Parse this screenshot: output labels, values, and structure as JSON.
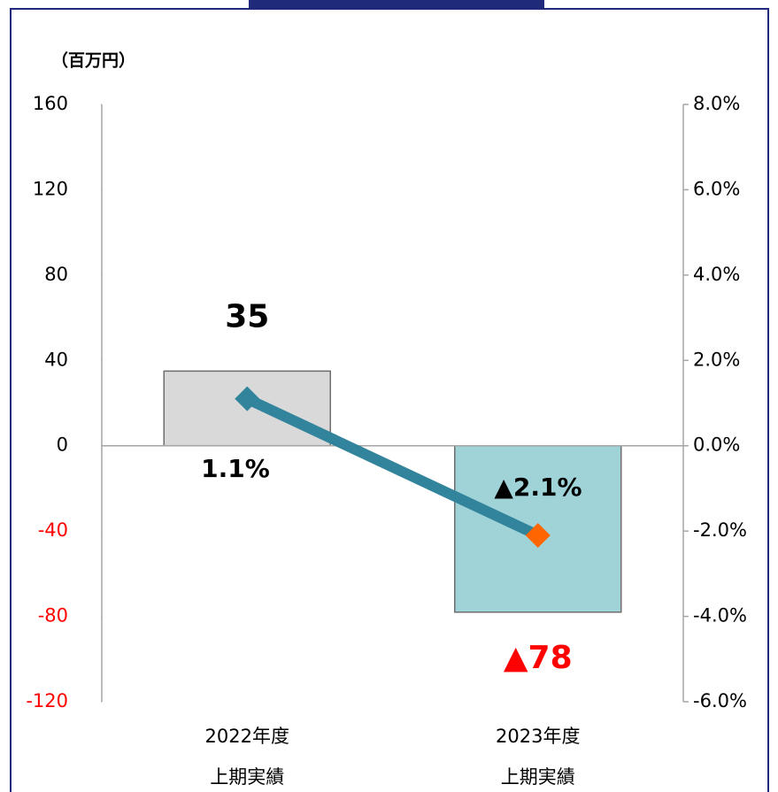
{
  "chart_data": {
    "type": "bar_line",
    "unit_label": "（百万円）",
    "categories": [
      [
        "2022年度",
        "上期実績"
      ],
      [
        "2023年度",
        "上期実績"
      ]
    ],
    "ylim": [
      -120,
      160
    ],
    "yticks": [
      -120,
      -80,
      -40,
      0,
      40,
      80,
      120,
      160
    ],
    "negative_tick_color": "#ff0000",
    "y2lim": [
      -6,
      8
    ],
    "y2ticks": [
      {
        "value": -6,
        "label": "-6.0%"
      },
      {
        "value": -4,
        "label": "-4.0%"
      },
      {
        "value": -2,
        "label": "-2.0%"
      },
      {
        "value": 0,
        "label": "0.0%"
      },
      {
        "value": 2,
        "label": "2.0%"
      },
      {
        "value": 4,
        "label": "4.0%"
      },
      {
        "value": 6,
        "label": "6.0%"
      },
      {
        "value": 8,
        "label": "8.0%"
      }
    ],
    "series": [
      {
        "type": "bar",
        "values": [
          35,
          -78
        ],
        "value_labels": [
          "35",
          "▲78"
        ],
        "colors": [
          "#d9d9d9",
          "#a0d3d8"
        ],
        "label_colors": [
          "#000000",
          "#ff0000"
        ]
      },
      {
        "type": "line",
        "axis": "y2",
        "color": "#31849b",
        "values": [
          1.1,
          -2.1
        ],
        "value_labels": [
          "1.1%",
          "▲2.1%"
        ],
        "marker_colors": [
          "#31849b",
          "#ff6600"
        ]
      }
    ]
  }
}
